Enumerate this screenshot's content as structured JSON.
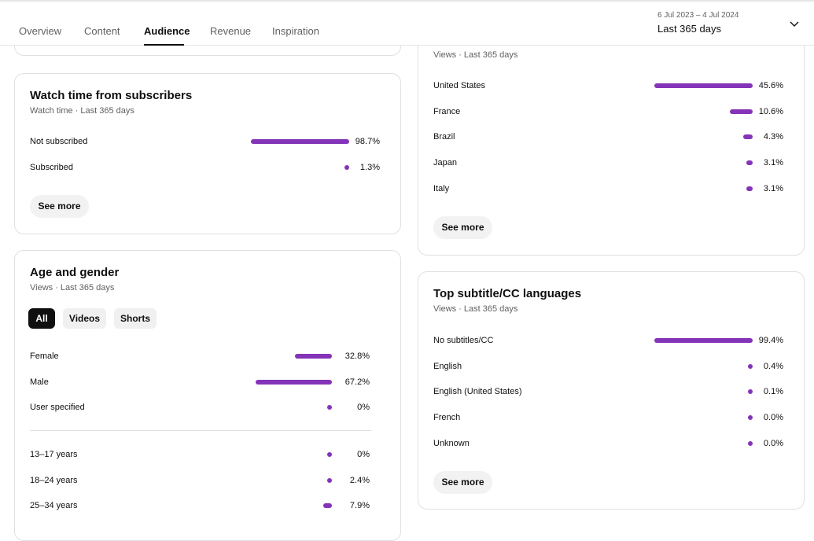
{
  "tabs": [
    "Overview",
    "Content",
    "Audience",
    "Revenue",
    "Inspiration"
  ],
  "date_range": {
    "dates": "6 Jul 2023 – 4 Jul 2024",
    "period": "Last 365 days"
  },
  "watch_time": {
    "title": "Watch time from subscribers",
    "subtitle": "Watch time · Last 365 days",
    "rows": [
      {
        "label": "Not subscribed",
        "value": 98.7,
        "value_label": "98.7%"
      },
      {
        "label": "Subscribed",
        "value": 1.3,
        "value_label": "1.3%"
      }
    ],
    "button": "See more"
  },
  "geography": {
    "subtitle": "Views · Last 365 days",
    "rows": [
      {
        "label": "United States",
        "value": 45.6,
        "value_label": "45.6%"
      },
      {
        "label": "France",
        "value": 10.6,
        "value_label": "10.6%"
      },
      {
        "label": "Brazil",
        "value": 4.3,
        "value_label": "4.3%"
      },
      {
        "label": "Japan",
        "value": 3.1,
        "value_label": "3.1%"
      },
      {
        "label": "Italy",
        "value": 3.1,
        "value_label": "3.1%"
      }
    ],
    "button": "See more"
  },
  "age_gender": {
    "title": "Age and gender",
    "subtitle": "Views · Last 365 days",
    "chips": [
      "All",
      "Videos",
      "Shorts"
    ],
    "gender": [
      {
        "label": "Female",
        "value": 32.8,
        "value_label": "32.8%"
      },
      {
        "label": "Male",
        "value": 67.2,
        "value_label": "67.2%"
      },
      {
        "label": "User specified",
        "value": 0,
        "value_label": "0%"
      }
    ],
    "age": [
      {
        "label": "13–17 years",
        "value": 0,
        "value_label": "0%"
      },
      {
        "label": "18–24 years",
        "value": 2.4,
        "value_label": "2.4%"
      },
      {
        "label": "25–34 years",
        "value": 7.9,
        "value_label": "7.9%"
      }
    ]
  },
  "subtitles": {
    "title": "Top subtitle/CC languages",
    "subtitle": "Views · Last 365 days",
    "rows": [
      {
        "label": "No subtitles/CC",
        "value": 99.4,
        "value_label": "99.4%"
      },
      {
        "label": "English",
        "value": 0.4,
        "value_label": "0.4%"
      },
      {
        "label": "English (United States)",
        "value": 0.1,
        "value_label": "0.1%"
      },
      {
        "label": "French",
        "value": 0.0,
        "value_label": "0.0%"
      },
      {
        "label": "Unknown",
        "value": 0.0,
        "value_label": "0.0%"
      }
    ],
    "button": "See more"
  }
}
